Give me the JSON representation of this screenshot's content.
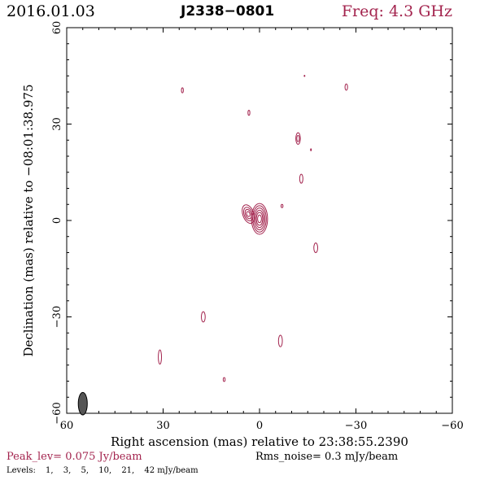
{
  "header": {
    "date": "2016.01.03",
    "source": "J2338−0801",
    "freq": "Freq: 4.3 GHz"
  },
  "footer": {
    "peak": "Peak_lev=  0.075 Jy/beam",
    "rms": "Rms_noise=   0.3 mJy/beam",
    "levels_label": "Levels:",
    "levels": [
      "1,",
      "3,",
      "5,",
      "10,",
      "21,",
      "42 mJy/beam"
    ]
  },
  "colors": {
    "contour": "#a3244e",
    "beam": "#555555",
    "axis": "#000000"
  },
  "chart_data": {
    "type": "contour",
    "title": "J2338−0801",
    "xlabel": "Right ascension (mas) relative to 23:38:55.2390",
    "ylabel": "Declination (mas) relative to −08:01:38.975",
    "xlim": [
      60,
      -60
    ],
    "ylim": [
      -60,
      60
    ],
    "xticks": [
      60,
      30,
      0,
      -30,
      -60
    ],
    "xtick_labels": [
      "60",
      "30",
      "0",
      "−30",
      "−60"
    ],
    "yticks": [
      -60,
      -30,
      0,
      30,
      60
    ],
    "ytick_labels": [
      "−60",
      "−30",
      "0",
      "30",
      "60"
    ],
    "contour_levels_mJy": [
      1,
      3,
      5,
      10,
      21,
      42
    ],
    "beam": {
      "x": 55,
      "y": -57,
      "major": 3.5,
      "minor": 1.4,
      "pa": 0
    },
    "components": [
      {
        "x": 0.0,
        "y": 0.5,
        "rx": [
          0.6,
          1.0,
          1.3,
          1.7,
          2.1,
          2.5
        ],
        "ry": [
          1.2,
          2.0,
          2.7,
          3.4,
          4.1,
          4.8
        ],
        "rot": 0
      },
      {
        "x": 3.5,
        "y": 2.0,
        "rx": [
          0.5,
          0.9,
          1.3,
          1.7
        ],
        "ry": [
          0.8,
          1.5,
          2.2,
          3.0
        ],
        "rot": -20
      },
      {
        "x": 24,
        "y": 40.5,
        "rx": [
          0.3
        ],
        "ry": [
          0.8
        ],
        "rot": 0
      },
      {
        "x": -27,
        "y": 41.5,
        "rx": [
          0.4
        ],
        "ry": [
          1.0
        ],
        "rot": 0
      },
      {
        "x": 3.3,
        "y": 33.5,
        "rx": [
          0.3
        ],
        "ry": [
          0.8
        ],
        "rot": 0
      },
      {
        "x": -14,
        "y": 45,
        "rx": [
          0.1
        ],
        "ry": [
          0.2
        ],
        "rot": 0
      },
      {
        "x": -12,
        "y": 25.5,
        "rx": [
          0.7,
          0.4
        ],
        "ry": [
          1.8,
          1.0
        ],
        "rot": 0
      },
      {
        "x": -16,
        "y": 22,
        "rx": [
          0.1
        ],
        "ry": [
          0.3
        ],
        "rot": 0
      },
      {
        "x": -13,
        "y": 13,
        "rx": [
          0.5
        ],
        "ry": [
          1.4
        ],
        "rot": 0
      },
      {
        "x": -7,
        "y": 4.5,
        "rx": [
          0.3
        ],
        "ry": [
          0.5
        ],
        "rot": 0
      },
      {
        "x": -17.5,
        "y": -8.5,
        "rx": [
          0.6
        ],
        "ry": [
          1.5
        ],
        "rot": 0
      },
      {
        "x": 17.5,
        "y": -30,
        "rx": [
          0.6
        ],
        "ry": [
          1.6
        ],
        "rot": 0
      },
      {
        "x": -6.5,
        "y": -37.5,
        "rx": [
          0.6
        ],
        "ry": [
          1.8
        ],
        "rot": 0
      },
      {
        "x": 31,
        "y": -42.5,
        "rx": [
          0.5
        ],
        "ry": [
          2.2
        ],
        "rot": 0
      },
      {
        "x": 11,
        "y": -49.5,
        "rx": [
          0.3
        ],
        "ry": [
          0.6
        ],
        "rot": 0
      }
    ]
  }
}
